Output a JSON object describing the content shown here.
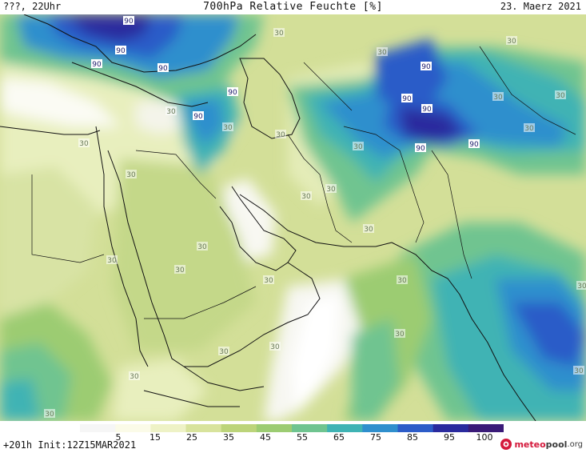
{
  "header": {
    "left": "???, 22Uhr",
    "center": "700hPa Relative Feuchte [%]",
    "right": "23. Maerz 2021"
  },
  "legend": {
    "ticks": [
      "5",
      "15",
      "25",
      "35",
      "45",
      "55",
      "65",
      "75",
      "85",
      "95",
      "100"
    ],
    "colors": [
      "#f6f6f6",
      "#fbfbe8",
      "#eef2c6",
      "#d8e39c",
      "#bcd47a",
      "#9ccc72",
      "#6fc490",
      "#3fb3b4",
      "#2f8fcd",
      "#2c5cc8",
      "#2a2a9e",
      "#3a1a78"
    ]
  },
  "contour_labels": [
    "90",
    "30"
  ],
  "footer": {
    "run": "+201h Init:12Z15MAR2021",
    "brand_prefix": "meteo",
    "brand_suffix": "pool",
    "brand_tld": ".org",
    "brand_color": "#d4183b",
    "brand_text_color": "#3a3a3a"
  }
}
